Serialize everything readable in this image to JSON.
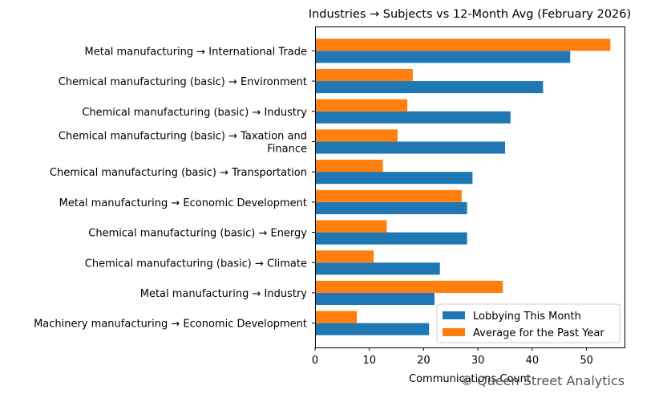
{
  "chart_data": {
    "type": "bar",
    "orientation": "horizontal",
    "title": "Industries → Subjects vs 12-Month Avg (February 2026)",
    "xlabel": "Communications Count",
    "ylabel": "",
    "xlim": [
      0,
      57
    ],
    "xticks": [
      0,
      10,
      20,
      30,
      40,
      50
    ],
    "grid": false,
    "legend_position": "lower-right",
    "categories": [
      [
        "Metal manufacturing → International Trade"
      ],
      [
        "Chemical manufacturing (basic) → Environment"
      ],
      [
        "Chemical manufacturing (basic) → Industry"
      ],
      [
        "Chemical manufacturing (basic) → Taxation and",
        "Finance"
      ],
      [
        "Chemical manufacturing (basic) → Transportation"
      ],
      [
        "Metal manufacturing → Economic Development"
      ],
      [
        "Chemical manufacturing (basic) → Energy"
      ],
      [
        "Chemical manufacturing (basic) → Climate"
      ],
      [
        "Metal manufacturing → Industry"
      ],
      [
        "Machinery manufacturing → Economic Development"
      ]
    ],
    "series": [
      {
        "name": "Lobbying This Month",
        "color": "#1f77b4",
        "values": [
          47,
          42,
          36,
          35,
          29,
          28,
          28,
          23,
          22,
          21
        ]
      },
      {
        "name": "Average for the Past Year",
        "color": "#ff7f0e",
        "values": [
          54.4,
          18,
          17,
          15.2,
          12.5,
          27,
          13.2,
          10.8,
          34.6,
          7.7
        ]
      }
    ]
  },
  "credit": "© Queen Street Analytics"
}
